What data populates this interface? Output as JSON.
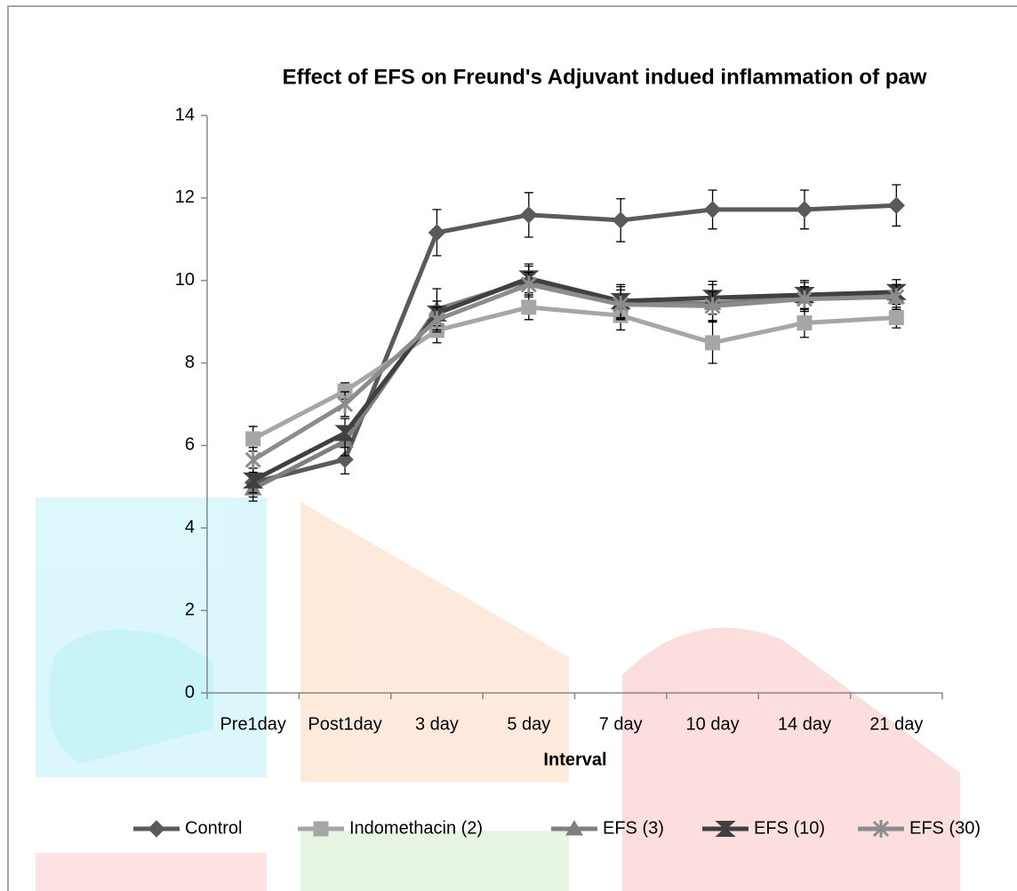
{
  "chart_data": {
    "type": "line",
    "title": "Effect of EFS on Freund's Adjuvant indued inflammation of paw",
    "x_label": "Interval",
    "categories": [
      "Pre1day",
      "Post1day",
      "3 day",
      "5 day",
      "7 day",
      "10 day",
      "14 day",
      "21 day"
    ],
    "ylim": [
      0,
      14
    ],
    "yticks": [
      0,
      2,
      4,
      6,
      8,
      10,
      12,
      14
    ],
    "legend": "bottom",
    "series": [
      {
        "name": "Control",
        "color": "#5a5a5a",
        "marker": "diamond",
        "values": [
          5.1,
          5.66,
          11.16,
          11.59,
          11.46,
          11.72,
          11.72,
          11.82
        ],
        "errors": [
          0.35,
          0.35,
          0.56,
          0.54,
          0.52,
          0.47,
          0.47,
          0.5
        ]
      },
      {
        "name": "Indomethacin (2)",
        "color": "#a6a6a6",
        "marker": "square",
        "values": [
          6.16,
          7.32,
          8.79,
          9.35,
          9.15,
          8.49,
          8.97,
          9.1
        ],
        "errors": [
          0.3,
          0.2,
          0.3,
          0.3,
          0.35,
          0.5,
          0.35,
          0.25
        ]
      },
      {
        "name": "EFS (3)",
        "color": "#7f7f7f",
        "marker": "triangle",
        "values": [
          4.95,
          6.1,
          9.3,
          10.0,
          9.45,
          9.45,
          9.6,
          9.6
        ],
        "errors": [
          0.3,
          0.35,
          0.5,
          0.35,
          0.4,
          0.45,
          0.35,
          0.3
        ]
      },
      {
        "name": "EFS (10)",
        "color": "#404040",
        "marker": "hourglass",
        "values": [
          5.15,
          6.3,
          9.2,
          10.05,
          9.5,
          9.58,
          9.65,
          9.72
        ],
        "errors": [
          0.3,
          0.35,
          0.3,
          0.35,
          0.4,
          0.4,
          0.35,
          0.3
        ]
      },
      {
        "name": "EFS (30)",
        "color": "#8c8c8c",
        "marker": "star",
        "values": [
          5.65,
          7.0,
          9.05,
          9.9,
          9.42,
          9.38,
          9.55,
          9.6
        ],
        "errors": [
          0.3,
          0.3,
          0.3,
          0.3,
          0.35,
          0.35,
          0.3,
          0.3
        ]
      }
    ]
  }
}
